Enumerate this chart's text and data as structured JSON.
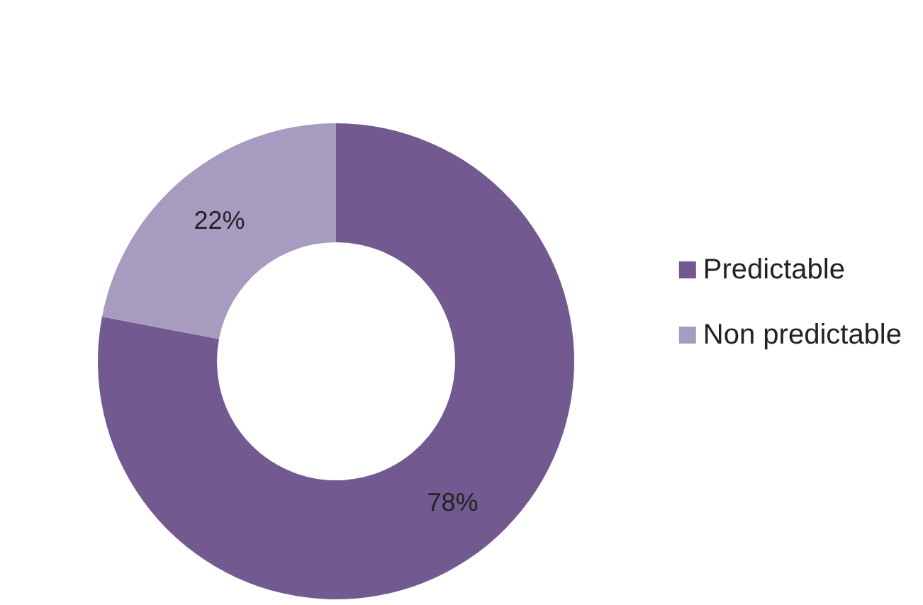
{
  "chart_data": {
    "type": "donut",
    "categories": [
      "Predictable",
      "Non predictable"
    ],
    "values": [
      78,
      22
    ],
    "colors": [
      "#725a91",
      "#a89bc0"
    ],
    "value_labels": [
      "78%",
      "22%"
    ],
    "legend": "right"
  }
}
